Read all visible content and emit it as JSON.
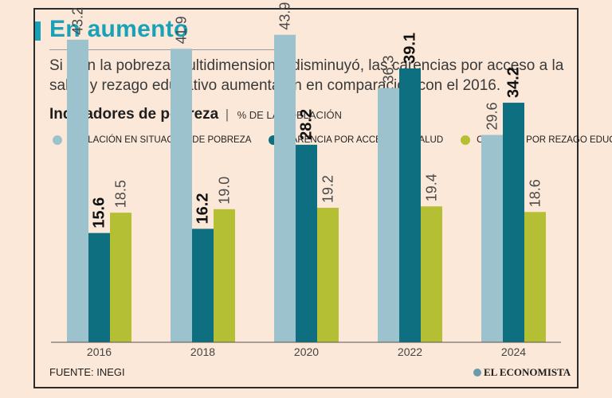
{
  "header": {
    "title": "En aumento",
    "subtitle": "Si bien la pobreza multidimensional disminuyó, las carencias por acceso a la salud y rezago educativo aumentaron en comparación con el 2016."
  },
  "chart_heading": {
    "main": "Indicadores de pobreza",
    "separator": "|",
    "unit": "% DE LA POBLACIÓN"
  },
  "legend": [
    {
      "label": "POBLACIÓN EN SITUACIÓN DE POBREZA",
      "color": "#9cc3cd"
    },
    {
      "label": "CARENCIA POR ACCESO DE SALUD",
      "color": "#0d6f80"
    },
    {
      "label": "CARENCIA POR REZAGO EDUCATIVO",
      "color": "#b5bf33"
    }
  ],
  "colors": {
    "title": "#1aa1b8",
    "accent": "#1aa1b8",
    "background": "#fbe8d8"
  },
  "chart_data": {
    "type": "bar",
    "categories": [
      "2016",
      "2018",
      "2020",
      "2022",
      "2024"
    ],
    "series": [
      {
        "name": "POBLACIÓN EN SITUACIÓN DE POBREZA",
        "values": [
          43.2,
          41.9,
          43.9,
          36.3,
          29.6
        ],
        "labels": [
          "43.2",
          "41.9",
          "43.9",
          "36.3",
          "29.6"
        ],
        "bold": false
      },
      {
        "name": "CARENCIA POR ACCESO DE SALUD",
        "values": [
          15.6,
          16.2,
          28.2,
          39.1,
          34.2
        ],
        "labels": [
          "15.6",
          "16.2",
          "28.2",
          "39.1",
          "34.2"
        ],
        "bold": true
      },
      {
        "name": "CARENCIA POR REZAGO EDUCATIVO",
        "values": [
          18.5,
          19.0,
          19.2,
          19.4,
          18.6
        ],
        "labels": [
          "18.5",
          "19.0",
          "19.2",
          "19.4",
          "18.6"
        ],
        "bold": false
      }
    ],
    "ylim": [
      0,
      50
    ],
    "title": "Indicadores de pobreza",
    "ylabel": "% DE LA POBLACIÓN",
    "xlabel": ""
  },
  "footer": {
    "source": "FUENTE: INEGI",
    "brand": "EL ECONOMISTA"
  }
}
